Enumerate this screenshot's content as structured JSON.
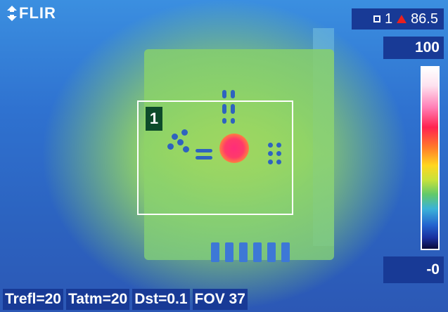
{
  "brand": {
    "logo_text": "FLIR",
    "icon": "flir-logo-icon"
  },
  "measurement": {
    "spot_marker": "□1",
    "spot_number": "1",
    "alarm_icon": "red-triangle-icon",
    "value": "86.5"
  },
  "scale": {
    "max": "100",
    "min": "-0",
    "palette": "iron-rainbow"
  },
  "roi": {
    "label": "1"
  },
  "params": {
    "trefl": "Trefl=20",
    "tatm": "Tatm=20",
    "dst": "Dst=0.1",
    "fov": "FOV 37"
  },
  "colors": {
    "overlay_bg": "#183a96",
    "alarm": "#e8201e",
    "roi_border": "#ffffff"
  }
}
